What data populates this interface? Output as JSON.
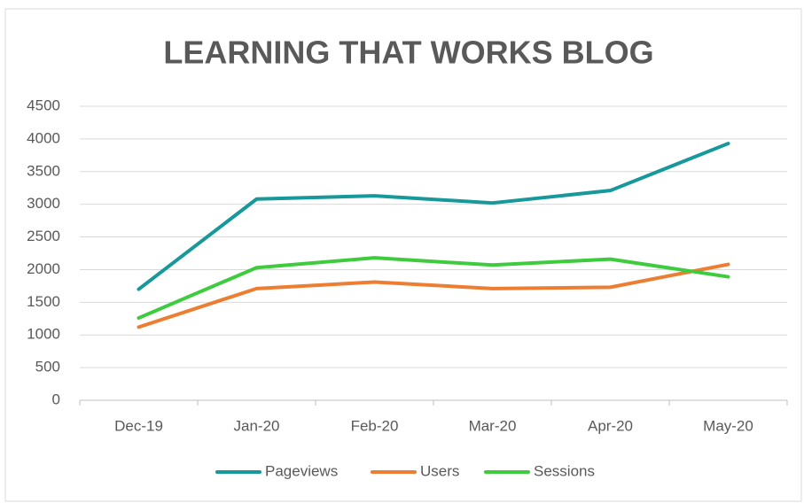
{
  "chart_data": {
    "type": "line",
    "title": "LEARNING THAT WORKS BLOG",
    "categories": [
      "Dec-19",
      "Jan-20",
      "Feb-20",
      "Mar-20",
      "Apr-20",
      "May-20"
    ],
    "series": [
      {
        "name": "Pageviews",
        "color": "#17989a",
        "values": [
          1700,
          3080,
          3130,
          3020,
          3210,
          3930
        ]
      },
      {
        "name": "Users",
        "color": "#ed7d31",
        "values": [
          1120,
          1710,
          1810,
          1710,
          1730,
          2080
        ]
      },
      {
        "name": "Sessions",
        "color": "#3ecc3e",
        "values": [
          1260,
          2030,
          2180,
          2070,
          2160,
          1890
        ]
      }
    ],
    "ylim": [
      0,
      4500
    ],
    "yticks": [
      0,
      500,
      1000,
      1500,
      2000,
      2500,
      3000,
      3500,
      4000,
      4500
    ],
    "grid": true,
    "legend": "bottom"
  }
}
